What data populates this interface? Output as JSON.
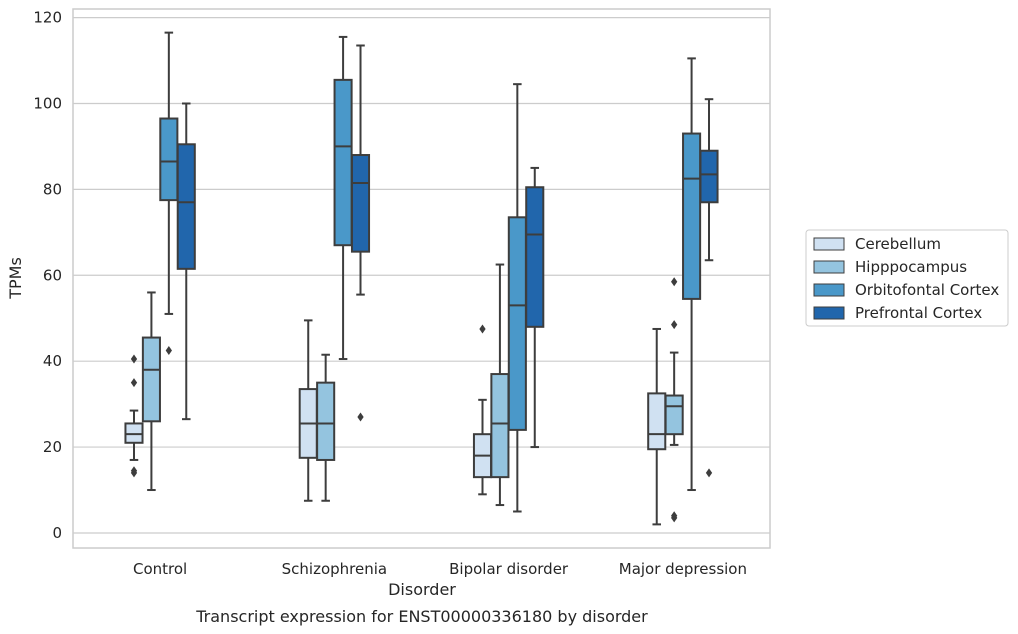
{
  "chart_data": {
    "type": "box",
    "title": "",
    "caption": "Transcript expression for ENST00000336180 by disorder",
    "xlabel": "Disorder",
    "ylabel": "TPMs",
    "ylim": [
      -3.5,
      122
    ],
    "yticks": [
      0,
      20,
      40,
      60,
      80,
      100,
      120
    ],
    "grid": "horizontal",
    "legend_position": "right",
    "categories": [
      "Control",
      "Schizophrenia",
      "Bipolar disorder",
      "Major depression"
    ],
    "series": [
      {
        "name": "Cerebellum",
        "color": "#d0e1f2",
        "boxes": [
          {
            "whislo": 17,
            "q1": 21,
            "med": 23,
            "q3": 25.5,
            "whishi": 28.5,
            "fliers": [
              40.5,
              35,
              14.5,
              14
            ]
          },
          {
            "whislo": 7.5,
            "q1": 17.5,
            "med": 25.5,
            "q3": 33.5,
            "whishi": 49.5,
            "fliers": []
          },
          {
            "whislo": 9,
            "q1": 13,
            "med": 18,
            "q3": 23,
            "whishi": 31,
            "fliers": [
              47.5
            ]
          },
          {
            "whislo": 2,
            "q1": 19.5,
            "med": 23,
            "q3": 32.5,
            "whishi": 47.5,
            "fliers": []
          }
        ]
      },
      {
        "name": "Hipppocampus",
        "color": "#94c4df",
        "boxes": [
          {
            "whislo": 10,
            "q1": 26,
            "med": 38,
            "q3": 45.5,
            "whishi": 56,
            "fliers": []
          },
          {
            "whislo": 7.5,
            "q1": 17,
            "med": 25.5,
            "q3": 35,
            "whishi": 41.5,
            "fliers": []
          },
          {
            "whislo": 6.5,
            "q1": 13,
            "med": 25.5,
            "q3": 37,
            "whishi": 62.5,
            "fliers": []
          },
          {
            "whislo": 20.5,
            "q1": 23,
            "med": 29.5,
            "q3": 32,
            "whishi": 42,
            "fliers": [
              58.5,
              48.5,
              4,
              3.5
            ]
          }
        ]
      },
      {
        "name": "Orbitofontal Cortex",
        "color": "#4a98c9",
        "boxes": [
          {
            "whislo": 51,
            "q1": 77.5,
            "med": 86.5,
            "q3": 96.5,
            "whishi": 116.5,
            "fliers": [
              42.5
            ]
          },
          {
            "whislo": 40.5,
            "q1": 67,
            "med": 90,
            "q3": 105.5,
            "whishi": 115.5,
            "fliers": []
          },
          {
            "whislo": 5,
            "q1": 24,
            "med": 53,
            "q3": 73.5,
            "whishi": 104.5,
            "fliers": []
          },
          {
            "whislo": 10,
            "q1": 54.5,
            "med": 82.5,
            "q3": 93,
            "whishi": 110.5,
            "fliers": []
          }
        ]
      },
      {
        "name": "Prefrontal Cortex",
        "color": "#2166ac",
        "boxes": [
          {
            "whislo": 26.5,
            "q1": 61.5,
            "med": 77,
            "q3": 90.5,
            "whishi": 100,
            "fliers": []
          },
          {
            "whislo": 55.5,
            "q1": 65.5,
            "med": 81.5,
            "q3": 88,
            "whishi": 113.5,
            "fliers": [
              27
            ]
          },
          {
            "whislo": 20,
            "q1": 48,
            "med": 69.5,
            "q3": 80.5,
            "whishi": 85,
            "fliers": []
          },
          {
            "whislo": 63.5,
            "q1": 77,
            "med": 83.5,
            "q3": 89,
            "whishi": 101,
            "fliers": [
              14
            ]
          }
        ]
      }
    ]
  }
}
